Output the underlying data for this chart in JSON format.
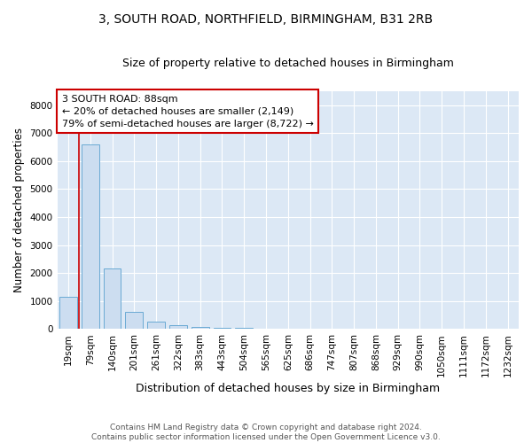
{
  "title_line1": "3, SOUTH ROAD, NORTHFIELD, BIRMINGHAM, B31 2RB",
  "title_line2": "Size of property relative to detached houses in Birmingham",
  "xlabel": "Distribution of detached houses by size in Birmingham",
  "ylabel": "Number of detached properties",
  "categories": [
    "19sqm",
    "79sqm",
    "140sqm",
    "201sqm",
    "261sqm",
    "322sqm",
    "383sqm",
    "443sqm",
    "504sqm",
    "565sqm",
    "625sqm",
    "686sqm",
    "747sqm",
    "807sqm",
    "868sqm",
    "929sqm",
    "990sqm",
    "1050sqm",
    "1111sqm",
    "1172sqm",
    "1232sqm"
  ],
  "values": [
    1150,
    6600,
    2150,
    600,
    280,
    150,
    70,
    50,
    50,
    0,
    0,
    0,
    0,
    0,
    0,
    0,
    0,
    0,
    0,
    0,
    0
  ],
  "bar_color": "#ccddf0",
  "bar_edge_color": "#6aaad4",
  "vline_x": 0.5,
  "vline_color": "#cc0000",
  "annotation_text": "3 SOUTH ROAD: 88sqm\n← 20% of detached houses are smaller (2,149)\n79% of semi-detached houses are larger (8,722) →",
  "annotation_box_color": "white",
  "annotation_box_edge_color": "#cc0000",
  "ylim": [
    0,
    8500
  ],
  "yticks": [
    0,
    1000,
    2000,
    3000,
    4000,
    5000,
    6000,
    7000,
    8000
  ],
  "footer_line1": "Contains HM Land Registry data © Crown copyright and database right 2024.",
  "footer_line2": "Contains public sector information licensed under the Open Government Licence v3.0.",
  "plot_bg_color": "#dce8f5",
  "grid_color": "white",
  "title_fontsize": 10,
  "subtitle_fontsize": 9,
  "tick_fontsize": 7.5,
  "ylabel_fontsize": 8.5,
  "xlabel_fontsize": 9,
  "annotation_fontsize": 8
}
